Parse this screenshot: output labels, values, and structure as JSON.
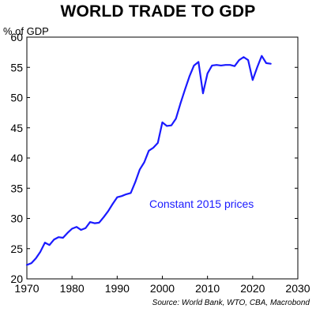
{
  "chart_data": {
    "type": "line",
    "title": "WORLD TRADE TO GDP",
    "ylabel": "% of GDP",
    "xlabel": "",
    "xlim": [
      1970,
      2030
    ],
    "ylim": [
      20,
      60
    ],
    "x_ticks": [
      1970,
      1980,
      1990,
      2000,
      2010,
      2020,
      2030
    ],
    "y_ticks": [
      20,
      25,
      30,
      35,
      40,
      45,
      50,
      55,
      60
    ],
    "grid": false,
    "annotation": "Constant 2015 prices",
    "source": "Source: World Bank, WTO, CBA, Macrobond",
    "line_color": "#1a1aff",
    "series": [
      {
        "x": [
          1970,
          1971,
          1972,
          1973,
          1974,
          1975,
          1976,
          1977,
          1978,
          1979,
          1980,
          1981,
          1982,
          1983,
          1984,
          1985,
          1986,
          1987,
          1988,
          1989,
          1990,
          1991,
          1992,
          1993,
          1994,
          1995,
          1996,
          1997,
          1998,
          1999,
          2000,
          2001,
          2002,
          2003,
          2004,
          2005,
          2006,
          2007,
          2008,
          2009,
          2010,
          2011,
          2012,
          2013,
          2014,
          2015,
          2016,
          2017,
          2018,
          2019,
          2020,
          2021,
          2022,
          2023,
          2024
        ],
        "values": [
          22.3,
          22.6,
          23.4,
          24.5,
          26.0,
          25.6,
          26.5,
          26.9,
          26.8,
          27.6,
          28.3,
          28.6,
          28.1,
          28.4,
          29.4,
          29.2,
          29.3,
          30.2,
          31.2,
          32.4,
          33.5,
          33.7,
          34.0,
          34.2,
          36.0,
          38.1,
          39.3,
          41.2,
          41.7,
          42.5,
          45.9,
          45.3,
          45.4,
          46.5,
          49.0,
          51.3,
          53.5,
          55.3,
          55.9,
          50.7,
          54.0,
          55.3,
          55.4,
          55.3,
          55.4,
          55.4,
          55.2,
          56.2,
          56.7,
          56.2,
          52.9,
          55.0,
          56.9,
          55.7,
          55.6
        ]
      }
    ]
  }
}
